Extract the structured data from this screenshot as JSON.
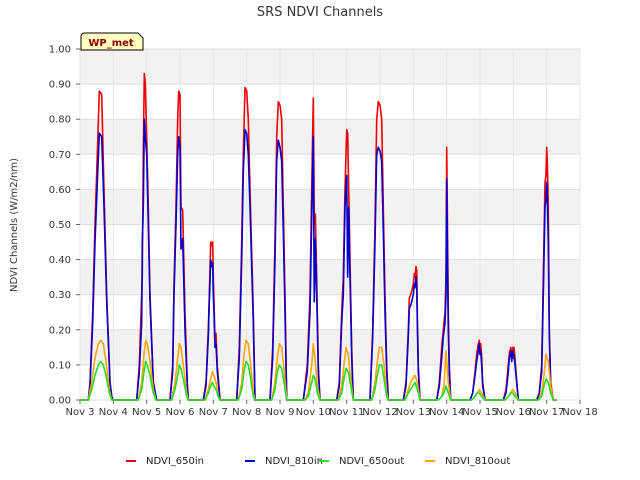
{
  "chart_data": {
    "type": "line",
    "title": "SRS NDVI Channels",
    "ylabel": "NDVI Channels (W/m2/nm)",
    "xlabel": "",
    "badge": "WP_met",
    "ylim": [
      0.0,
      1.0
    ],
    "xlim": [
      3,
      18
    ],
    "y_ticks": [
      "0.00",
      "0.10",
      "0.20",
      "0.30",
      "0.40",
      "0.50",
      "0.60",
      "0.70",
      "0.80",
      "0.90",
      "1.00"
    ],
    "x_ticks": [
      "Nov 3",
      "Nov 4",
      "Nov 5",
      "Nov 6",
      "Nov 7",
      "Nov 8",
      "Nov 9",
      "Nov 10",
      "Nov 11",
      "Nov 12",
      "Nov 13",
      "Nov 14",
      "Nov 15",
      "Nov 16",
      "Nov 17",
      "Nov 18"
    ],
    "x_tick_values": [
      3,
      4,
      5,
      6,
      7,
      8,
      9,
      10,
      11,
      12,
      13,
      14,
      15,
      16,
      17,
      18
    ],
    "colors": {
      "NDVI_650in": "#ee0000",
      "NDVI_810in": "#0000cc",
      "NDVI_650out": "#22dd22",
      "NDVI_810out": "#ffa500"
    },
    "series": [
      {
        "name": "NDVI_650in",
        "x": [
          3.0,
          3.25,
          3.3,
          3.38,
          3.45,
          3.52,
          3.58,
          3.65,
          3.72,
          3.8,
          3.9,
          3.95,
          3.98,
          4.0,
          4.7,
          4.78,
          4.85,
          4.87,
          4.9,
          4.93,
          4.96,
          5.0,
          5.05,
          5.1,
          5.2,
          5.28,
          5.3,
          5.7,
          5.78,
          5.82,
          5.88,
          5.93,
          5.96,
          6.0,
          6.03,
          6.08,
          6.15,
          6.22,
          6.25,
          6.7,
          6.78,
          6.85,
          6.88,
          6.92,
          6.95,
          6.98,
          7.0,
          7.02,
          7.05,
          7.08,
          7.12,
          7.2,
          7.7,
          7.78,
          7.85,
          7.9,
          7.95,
          8.0,
          8.05,
          8.1,
          8.2,
          8.25,
          8.7,
          8.78,
          8.85,
          8.9,
          8.95,
          9.0,
          9.05,
          9.1,
          9.15,
          9.2,
          9.7,
          9.82,
          9.9,
          9.95,
          10.0,
          10.03,
          10.06,
          10.1,
          10.15,
          10.2,
          10.7,
          10.78,
          10.85,
          10.9,
          10.95,
          11.0,
          11.03,
          11.06,
          11.1,
          11.15,
          11.2,
          11.7,
          11.78,
          11.85,
          11.9,
          11.95,
          12.0,
          12.05,
          12.1,
          12.15,
          12.2,
          12.25,
          12.7,
          12.78,
          12.85,
          12.88,
          12.92,
          12.95,
          13.0,
          13.03,
          13.05,
          13.08,
          13.1,
          13.12,
          13.15,
          13.2,
          13.7,
          13.78,
          13.85,
          13.9,
          13.95,
          13.98,
          14.0,
          14.02,
          14.05,
          14.08,
          14.12,
          14.7,
          14.78,
          14.85,
          14.9,
          14.95,
          14.98,
          15.0,
          15.02,
          15.05,
          15.08,
          15.15,
          15.7,
          15.78,
          15.85,
          15.88,
          15.92,
          15.95,
          15.98,
          16.0,
          16.02,
          16.05,
          16.08,
          16.15,
          16.7,
          16.78,
          16.85,
          16.9,
          16.95,
          16.98,
          17.0,
          17.02,
          17.05,
          17.08,
          17.12,
          17.2,
          17.3
        ],
        "y": [
          0.0,
          0.0,
          0.05,
          0.25,
          0.5,
          0.7,
          0.88,
          0.87,
          0.6,
          0.3,
          0.05,
          0.01,
          0.0,
          0.0,
          0.0,
          0.1,
          0.3,
          0.35,
          0.7,
          0.93,
          0.9,
          0.75,
          0.55,
          0.3,
          0.05,
          0.01,
          0.0,
          0.0,
          0.1,
          0.33,
          0.55,
          0.8,
          0.88,
          0.87,
          0.55,
          0.54,
          0.25,
          0.05,
          0.0,
          0.0,
          0.05,
          0.2,
          0.3,
          0.45,
          0.44,
          0.45,
          0.35,
          0.28,
          0.17,
          0.19,
          0.1,
          0.0,
          0.0,
          0.15,
          0.45,
          0.7,
          0.89,
          0.88,
          0.8,
          0.6,
          0.25,
          0.0,
          0.0,
          0.15,
          0.45,
          0.75,
          0.85,
          0.84,
          0.8,
          0.55,
          0.3,
          0.0,
          0.0,
          0.1,
          0.3,
          0.6,
          0.86,
          0.5,
          0.53,
          0.35,
          0.1,
          0.0,
          0.0,
          0.05,
          0.25,
          0.35,
          0.6,
          0.77,
          0.76,
          0.6,
          0.4,
          0.15,
          0.0,
          0.0,
          0.2,
          0.5,
          0.8,
          0.85,
          0.84,
          0.8,
          0.55,
          0.3,
          0.1,
          0.0,
          0.0,
          0.05,
          0.2,
          0.29,
          0.3,
          0.31,
          0.33,
          0.36,
          0.35,
          0.38,
          0.37,
          0.25,
          0.1,
          0.0,
          0.0,
          0.05,
          0.15,
          0.2,
          0.25,
          0.35,
          0.72,
          0.55,
          0.25,
          0.1,
          0.0,
          0.0,
          0.02,
          0.08,
          0.13,
          0.16,
          0.17,
          0.15,
          0.16,
          0.12,
          0.05,
          0.0,
          0.0,
          0.03,
          0.1,
          0.13,
          0.15,
          0.12,
          0.15,
          0.13,
          0.15,
          0.12,
          0.08,
          0.0,
          0.0,
          0.02,
          0.1,
          0.35,
          0.62,
          0.64,
          0.72,
          0.68,
          0.55,
          0.2,
          0.05,
          0.0,
          0.0
        ]
      },
      {
        "name": "NDVI_810in",
        "x": [
          3.0,
          3.25,
          3.3,
          3.38,
          3.45,
          3.52,
          3.58,
          3.65,
          3.72,
          3.8,
          3.9,
          3.95,
          3.98,
          4.0,
          4.7,
          4.78,
          4.85,
          4.87,
          4.9,
          4.93,
          4.96,
          5.0,
          5.05,
          5.1,
          5.2,
          5.28,
          5.3,
          5.7,
          5.78,
          5.82,
          5.88,
          5.93,
          5.96,
          6.0,
          6.03,
          6.08,
          6.15,
          6.22,
          6.25,
          6.7,
          6.78,
          6.85,
          6.88,
          6.92,
          6.95,
          6.98,
          7.0,
          7.02,
          7.05,
          7.08,
          7.12,
          7.2,
          7.7,
          7.78,
          7.85,
          7.9,
          7.95,
          8.0,
          8.05,
          8.1,
          8.2,
          8.25,
          8.7,
          8.78,
          8.85,
          8.9,
          8.95,
          9.0,
          9.05,
          9.1,
          9.15,
          9.2,
          9.7,
          9.82,
          9.9,
          9.95,
          10.0,
          10.03,
          10.06,
          10.1,
          10.15,
          10.2,
          10.7,
          10.78,
          10.85,
          10.9,
          10.95,
          11.0,
          11.03,
          11.06,
          11.1,
          11.15,
          11.2,
          11.7,
          11.78,
          11.85,
          11.9,
          11.95,
          12.0,
          12.05,
          12.1,
          12.15,
          12.2,
          12.25,
          12.7,
          12.78,
          12.85,
          12.88,
          12.92,
          12.95,
          13.0,
          13.03,
          13.05,
          13.08,
          13.1,
          13.12,
          13.15,
          13.2,
          13.7,
          13.78,
          13.85,
          13.9,
          13.95,
          13.98,
          14.0,
          14.02,
          14.05,
          14.08,
          14.12,
          14.7,
          14.78,
          14.85,
          14.9,
          14.95,
          14.98,
          15.0,
          15.02,
          15.05,
          15.08,
          15.15,
          15.7,
          15.78,
          15.85,
          15.88,
          15.92,
          15.95,
          15.98,
          16.0,
          16.02,
          16.05,
          16.08,
          16.15,
          16.7,
          16.78,
          16.85,
          16.9,
          16.95,
          16.98,
          17.0,
          17.02,
          17.05,
          17.08,
          17.12,
          17.2,
          17.3
        ],
        "y": [
          0.0,
          0.0,
          0.04,
          0.22,
          0.45,
          0.62,
          0.76,
          0.75,
          0.55,
          0.28,
          0.05,
          0.01,
          0.0,
          0.0,
          0.0,
          0.08,
          0.22,
          0.45,
          0.55,
          0.8,
          0.75,
          0.7,
          0.5,
          0.28,
          0.05,
          0.01,
          0.0,
          0.0,
          0.08,
          0.3,
          0.5,
          0.7,
          0.75,
          0.72,
          0.43,
          0.46,
          0.2,
          0.04,
          0.0,
          0.0,
          0.04,
          0.18,
          0.28,
          0.4,
          0.38,
          0.39,
          0.3,
          0.25,
          0.15,
          0.16,
          0.08,
          0.0,
          0.0,
          0.12,
          0.4,
          0.65,
          0.77,
          0.76,
          0.7,
          0.55,
          0.22,
          0.0,
          0.0,
          0.12,
          0.4,
          0.68,
          0.74,
          0.72,
          0.68,
          0.48,
          0.25,
          0.0,
          0.0,
          0.08,
          0.25,
          0.52,
          0.75,
          0.28,
          0.46,
          0.3,
          0.08,
          0.0,
          0.0,
          0.04,
          0.22,
          0.3,
          0.55,
          0.64,
          0.35,
          0.55,
          0.35,
          0.12,
          0.0,
          0.0,
          0.18,
          0.45,
          0.7,
          0.72,
          0.71,
          0.68,
          0.48,
          0.25,
          0.08,
          0.0,
          0.0,
          0.04,
          0.18,
          0.26,
          0.27,
          0.28,
          0.3,
          0.33,
          0.32,
          0.35,
          0.33,
          0.22,
          0.08,
          0.0,
          0.0,
          0.04,
          0.12,
          0.18,
          0.22,
          0.3,
          0.63,
          0.45,
          0.2,
          0.08,
          0.0,
          0.0,
          0.02,
          0.07,
          0.11,
          0.14,
          0.16,
          0.13,
          0.14,
          0.1,
          0.04,
          0.0,
          0.0,
          0.02,
          0.08,
          0.12,
          0.14,
          0.11,
          0.14,
          0.12,
          0.13,
          0.1,
          0.07,
          0.0,
          0.0,
          0.02,
          0.08,
          0.3,
          0.55,
          0.57,
          0.62,
          0.58,
          0.45,
          0.18,
          0.04,
          0.0,
          0.0
        ]
      },
      {
        "name": "NDVI_650out",
        "x": [
          3.0,
          3.25,
          3.35,
          3.45,
          3.55,
          3.62,
          3.7,
          3.78,
          3.88,
          3.95,
          4.0,
          4.75,
          4.85,
          4.92,
          4.97,
          5.02,
          5.1,
          5.2,
          5.28,
          5.75,
          5.85,
          5.93,
          5.98,
          6.03,
          6.1,
          6.2,
          6.25,
          6.75,
          6.85,
          6.92,
          6.97,
          7.02,
          7.08,
          7.15,
          7.2,
          7.75,
          7.85,
          7.92,
          7.98,
          8.05,
          8.12,
          8.2,
          8.25,
          8.75,
          8.85,
          8.92,
          8.98,
          9.05,
          9.12,
          9.2,
          9.75,
          9.85,
          9.95,
          10.0,
          10.05,
          10.12,
          10.2,
          10.75,
          10.85,
          10.92,
          10.98,
          11.05,
          11.12,
          11.2,
          11.75,
          11.85,
          11.92,
          11.98,
          12.05,
          12.12,
          12.2,
          12.25,
          12.75,
          12.85,
          12.92,
          12.98,
          13.05,
          13.12,
          13.2,
          13.75,
          13.85,
          13.92,
          13.98,
          14.05,
          14.12,
          14.75,
          14.85,
          14.92,
          14.98,
          15.05,
          15.15,
          15.75,
          15.85,
          15.92,
          15.98,
          16.05,
          16.15,
          16.75,
          16.85,
          16.92,
          16.98,
          17.05,
          17.12,
          17.2,
          17.3
        ],
        "y": [
          0.0,
          0.0,
          0.03,
          0.07,
          0.1,
          0.11,
          0.1,
          0.07,
          0.02,
          0.0,
          0.0,
          0.0,
          0.03,
          0.08,
          0.11,
          0.1,
          0.07,
          0.02,
          0.0,
          0.0,
          0.03,
          0.07,
          0.1,
          0.09,
          0.06,
          0.01,
          0.0,
          0.0,
          0.02,
          0.04,
          0.05,
          0.04,
          0.03,
          0.01,
          0.0,
          0.0,
          0.03,
          0.08,
          0.11,
          0.1,
          0.06,
          0.01,
          0.0,
          0.0,
          0.03,
          0.08,
          0.1,
          0.09,
          0.05,
          0.0,
          0.0,
          0.01,
          0.05,
          0.07,
          0.06,
          0.02,
          0.0,
          0.0,
          0.02,
          0.06,
          0.09,
          0.08,
          0.04,
          0.0,
          0.0,
          0.03,
          0.07,
          0.1,
          0.1,
          0.06,
          0.01,
          0.0,
          0.0,
          0.02,
          0.03,
          0.04,
          0.05,
          0.03,
          0.0,
          0.0,
          0.01,
          0.02,
          0.04,
          0.02,
          0.0,
          0.0,
          0.01,
          0.02,
          0.02,
          0.01,
          0.0,
          0.0,
          0.01,
          0.02,
          0.02,
          0.01,
          0.0,
          0.0,
          0.01,
          0.04,
          0.06,
          0.05,
          0.02,
          0.0,
          0.0
        ]
      },
      {
        "name": "NDVI_810out",
        "x": [
          3.0,
          3.25,
          3.35,
          3.45,
          3.55,
          3.62,
          3.7,
          3.78,
          3.88,
          3.95,
          4.0,
          4.75,
          4.85,
          4.92,
          4.97,
          5.02,
          5.1,
          5.2,
          5.28,
          5.75,
          5.85,
          5.93,
          5.98,
          6.03,
          6.1,
          6.2,
          6.25,
          6.75,
          6.85,
          6.92,
          6.97,
          7.02,
          7.08,
          7.15,
          7.2,
          7.75,
          7.85,
          7.92,
          7.98,
          8.05,
          8.12,
          8.2,
          8.25,
          8.75,
          8.85,
          8.92,
          8.98,
          9.05,
          9.12,
          9.2,
          9.75,
          9.85,
          9.95,
          10.0,
          10.05,
          10.12,
          10.2,
          10.75,
          10.85,
          10.92,
          10.98,
          11.05,
          11.12,
          11.2,
          11.75,
          11.85,
          11.92,
          11.98,
          12.05,
          12.12,
          12.2,
          12.25,
          12.75,
          12.85,
          12.92,
          12.98,
          13.05,
          13.12,
          13.2,
          13.75,
          13.85,
          13.92,
          13.98,
          14.05,
          14.12,
          14.75,
          14.85,
          14.92,
          14.98,
          15.05,
          15.15,
          15.75,
          15.85,
          15.92,
          15.98,
          16.05,
          16.15,
          16.75,
          16.85,
          16.92,
          16.98,
          17.05,
          17.12,
          17.2,
          17.3
        ],
        "y": [
          0.0,
          0.0,
          0.05,
          0.12,
          0.16,
          0.17,
          0.16,
          0.11,
          0.03,
          0.0,
          0.0,
          0.0,
          0.05,
          0.13,
          0.17,
          0.16,
          0.11,
          0.03,
          0.0,
          0.0,
          0.05,
          0.12,
          0.16,
          0.15,
          0.1,
          0.02,
          0.0,
          0.0,
          0.03,
          0.06,
          0.08,
          0.07,
          0.05,
          0.01,
          0.0,
          0.0,
          0.05,
          0.13,
          0.17,
          0.16,
          0.1,
          0.02,
          0.0,
          0.0,
          0.05,
          0.12,
          0.16,
          0.15,
          0.09,
          0.0,
          0.0,
          0.02,
          0.1,
          0.16,
          0.12,
          0.04,
          0.0,
          0.0,
          0.04,
          0.1,
          0.15,
          0.13,
          0.06,
          0.0,
          0.0,
          0.05,
          0.11,
          0.15,
          0.15,
          0.1,
          0.02,
          0.0,
          0.0,
          0.03,
          0.05,
          0.06,
          0.07,
          0.05,
          0.0,
          0.0,
          0.01,
          0.04,
          0.14,
          0.05,
          0.0,
          0.0,
          0.01,
          0.02,
          0.03,
          0.02,
          0.0,
          0.0,
          0.01,
          0.02,
          0.03,
          0.02,
          0.0,
          0.0,
          0.02,
          0.07,
          0.13,
          0.11,
          0.04,
          0.0,
          0.0
        ]
      }
    ],
    "legend_position": "bottom-center",
    "grid": "horizontal-bands"
  }
}
